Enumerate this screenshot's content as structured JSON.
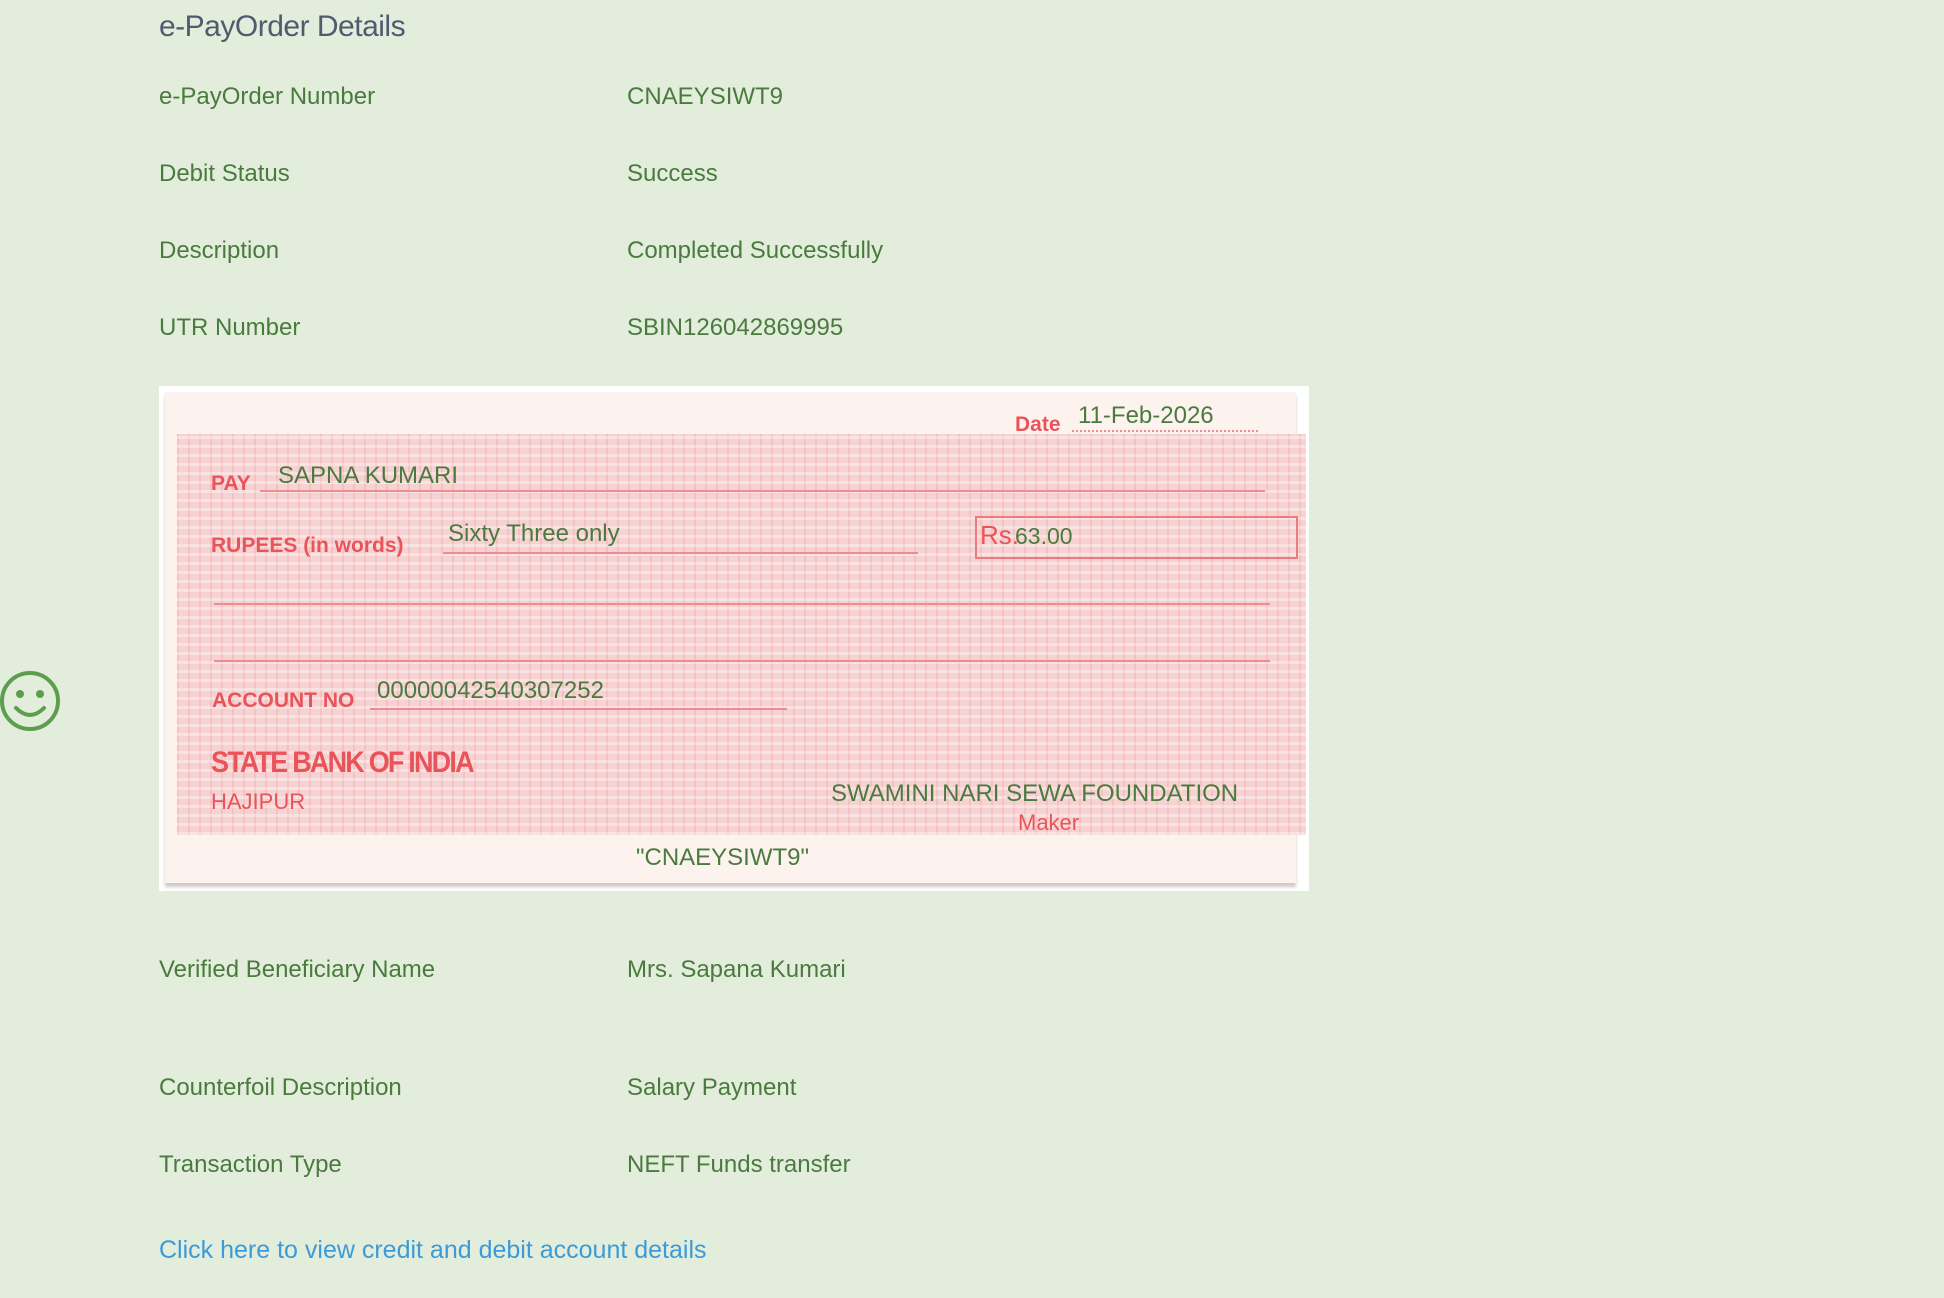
{
  "page": {
    "title": "e-PayOrder Details"
  },
  "details_top": [
    {
      "label": "e-PayOrder Number",
      "value": "CNAEYSIWT9"
    },
    {
      "label": "Debit Status",
      "value": "Success"
    },
    {
      "label": "Description",
      "value": "Completed Successfully"
    },
    {
      "label": "UTR Number",
      "value": "SBIN126042869995"
    }
  ],
  "cheque": {
    "date_label": "Date",
    "date": "11-Feb-2026",
    "pay_label": "PAY",
    "payee": "SAPNA KUMARI",
    "rupees_label": "RUPEES (in words)",
    "amount_words": "Sixty Three only",
    "rs_label": "Rs.",
    "amount": "63.00",
    "account_label": "ACCOUNT NO",
    "account_no": "00000042540307252",
    "bank_name": "STATE BANK OF INDIA",
    "branch": "HAJIPUR",
    "drawer": "SWAMINI NARI SEWA FOUNDATION",
    "drawer_role": "Maker",
    "reference": "\"CNAEYSIWT9\""
  },
  "details_bottom": [
    {
      "label": "Verified Beneficiary Name",
      "value": "Mrs. Sapana Kumari"
    },
    {
      "label": "Counterfoil Description",
      "value": "Salary Payment"
    },
    {
      "label": "Transaction Type",
      "value": "NEFT Funds transfer"
    }
  ],
  "link": {
    "label": "Click here to view credit and debit account details"
  },
  "colors": {
    "background": "#e2eedb",
    "text": "#4a7a3e",
    "heading": "#4f5b6e",
    "link": "#3d9ad8",
    "cheque_red": "#e9545a"
  },
  "icons": {
    "feedback": "smiley-icon"
  }
}
